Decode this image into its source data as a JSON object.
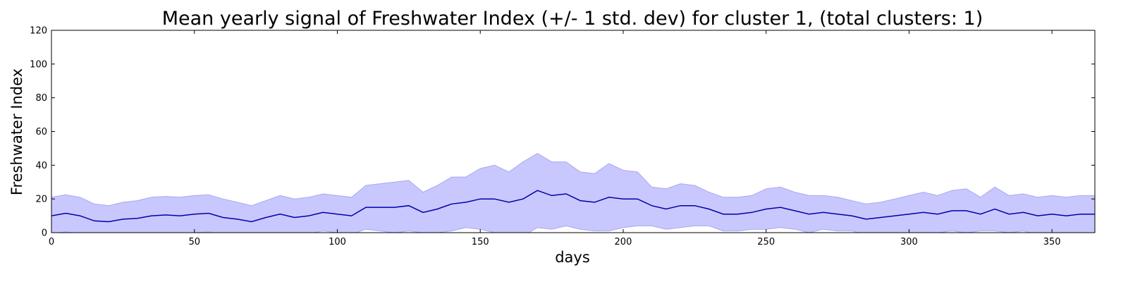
{
  "chart_data": {
    "type": "area",
    "title": "Mean yearly signal of Freshwater Index (+/- 1 std. dev) for cluster 1, (total clusters: 1)",
    "xlabel": "days",
    "ylabel": "Freshwater Index",
    "xlim": [
      0,
      365
    ],
    "ylim": [
      0,
      120
    ],
    "xticks": [
      0,
      50,
      100,
      150,
      200,
      250,
      300,
      350
    ],
    "yticks": [
      0,
      20,
      40,
      60,
      80,
      100,
      120
    ],
    "grid": false,
    "colors": {
      "mean_line": "#0000aa",
      "band_fill": "#c8c8ff",
      "band_edge": "#a8a8f0"
    },
    "series": [
      {
        "x": [
          0,
          5,
          10,
          15,
          20,
          25,
          30,
          35,
          40,
          45,
          50,
          55,
          60,
          65,
          70,
          75,
          80,
          85,
          90,
          95,
          100,
          105,
          110,
          115,
          120,
          125,
          130,
          135,
          140,
          145,
          150,
          155,
          160,
          165,
          170,
          175,
          180,
          185,
          190,
          195,
          200,
          205,
          210,
          215,
          220,
          225,
          230,
          235,
          240,
          245,
          250,
          255,
          260,
          265,
          270,
          275,
          280,
          285,
          290,
          295,
          300,
          305,
          310,
          315,
          320,
          325,
          330,
          335,
          340,
          345,
          350,
          355,
          360,
          365
        ],
        "mean": [
          10,
          11.5,
          10,
          7,
          6.5,
          8,
          8.5,
          10,
          10.5,
          10,
          11,
          11.5,
          9,
          8,
          6.5,
          9,
          11,
          9,
          10,
          12,
          11,
          10,
          15,
          15,
          15,
          16,
          12,
          14,
          17,
          18,
          20,
          20,
          18,
          20,
          25,
          22,
          23,
          19,
          18,
          21,
          20,
          20,
          16,
          14,
          16,
          16,
          14,
          11,
          11,
          12,
          14,
          15,
          13,
          11,
          12,
          11,
          10,
          8,
          9,
          10,
          11,
          12,
          11,
          13,
          13,
          11,
          14,
          11,
          12,
          10,
          11,
          10,
          11,
          11
        ],
        "upper": [
          21,
          22.5,
          21,
          17,
          16,
          18,
          19,
          21,
          21.5,
          21,
          22,
          22.5,
          20,
          18,
          16,
          19,
          22,
          20,
          21,
          23,
          22,
          21,
          28,
          29,
          30,
          31,
          24,
          28,
          33,
          33,
          38,
          40,
          36,
          42,
          47,
          42,
          42,
          36,
          35,
          41,
          37,
          36,
          27,
          26,
          29,
          28,
          24,
          21,
          21,
          22,
          26,
          27,
          24,
          22,
          22,
          21,
          19,
          17,
          18,
          20,
          22,
          24,
          22,
          25,
          26,
          21,
          27,
          22,
          23,
          21,
          22,
          21,
          22,
          22
        ],
        "lower": [
          -0.5,
          0.5,
          -0.5,
          -1,
          -2,
          -1,
          -1,
          -0.5,
          -0.5,
          -0.5,
          0,
          0.5,
          -1,
          -1,
          -2,
          -1,
          0,
          -1,
          -0.5,
          1,
          0,
          -1,
          2,
          1,
          0,
          1,
          0,
          0,
          1,
          3,
          2,
          0,
          0,
          -2,
          3,
          2,
          4,
          2,
          1,
          1,
          3,
          4,
          4,
          2,
          3,
          4,
          4,
          1,
          1,
          2,
          2,
          3,
          2,
          0,
          2,
          1,
          1,
          -1,
          0,
          0,
          0,
          0,
          0,
          1,
          0,
          1,
          1,
          0,
          1,
          -1,
          0,
          -1,
          0,
          0
        ]
      }
    ]
  }
}
